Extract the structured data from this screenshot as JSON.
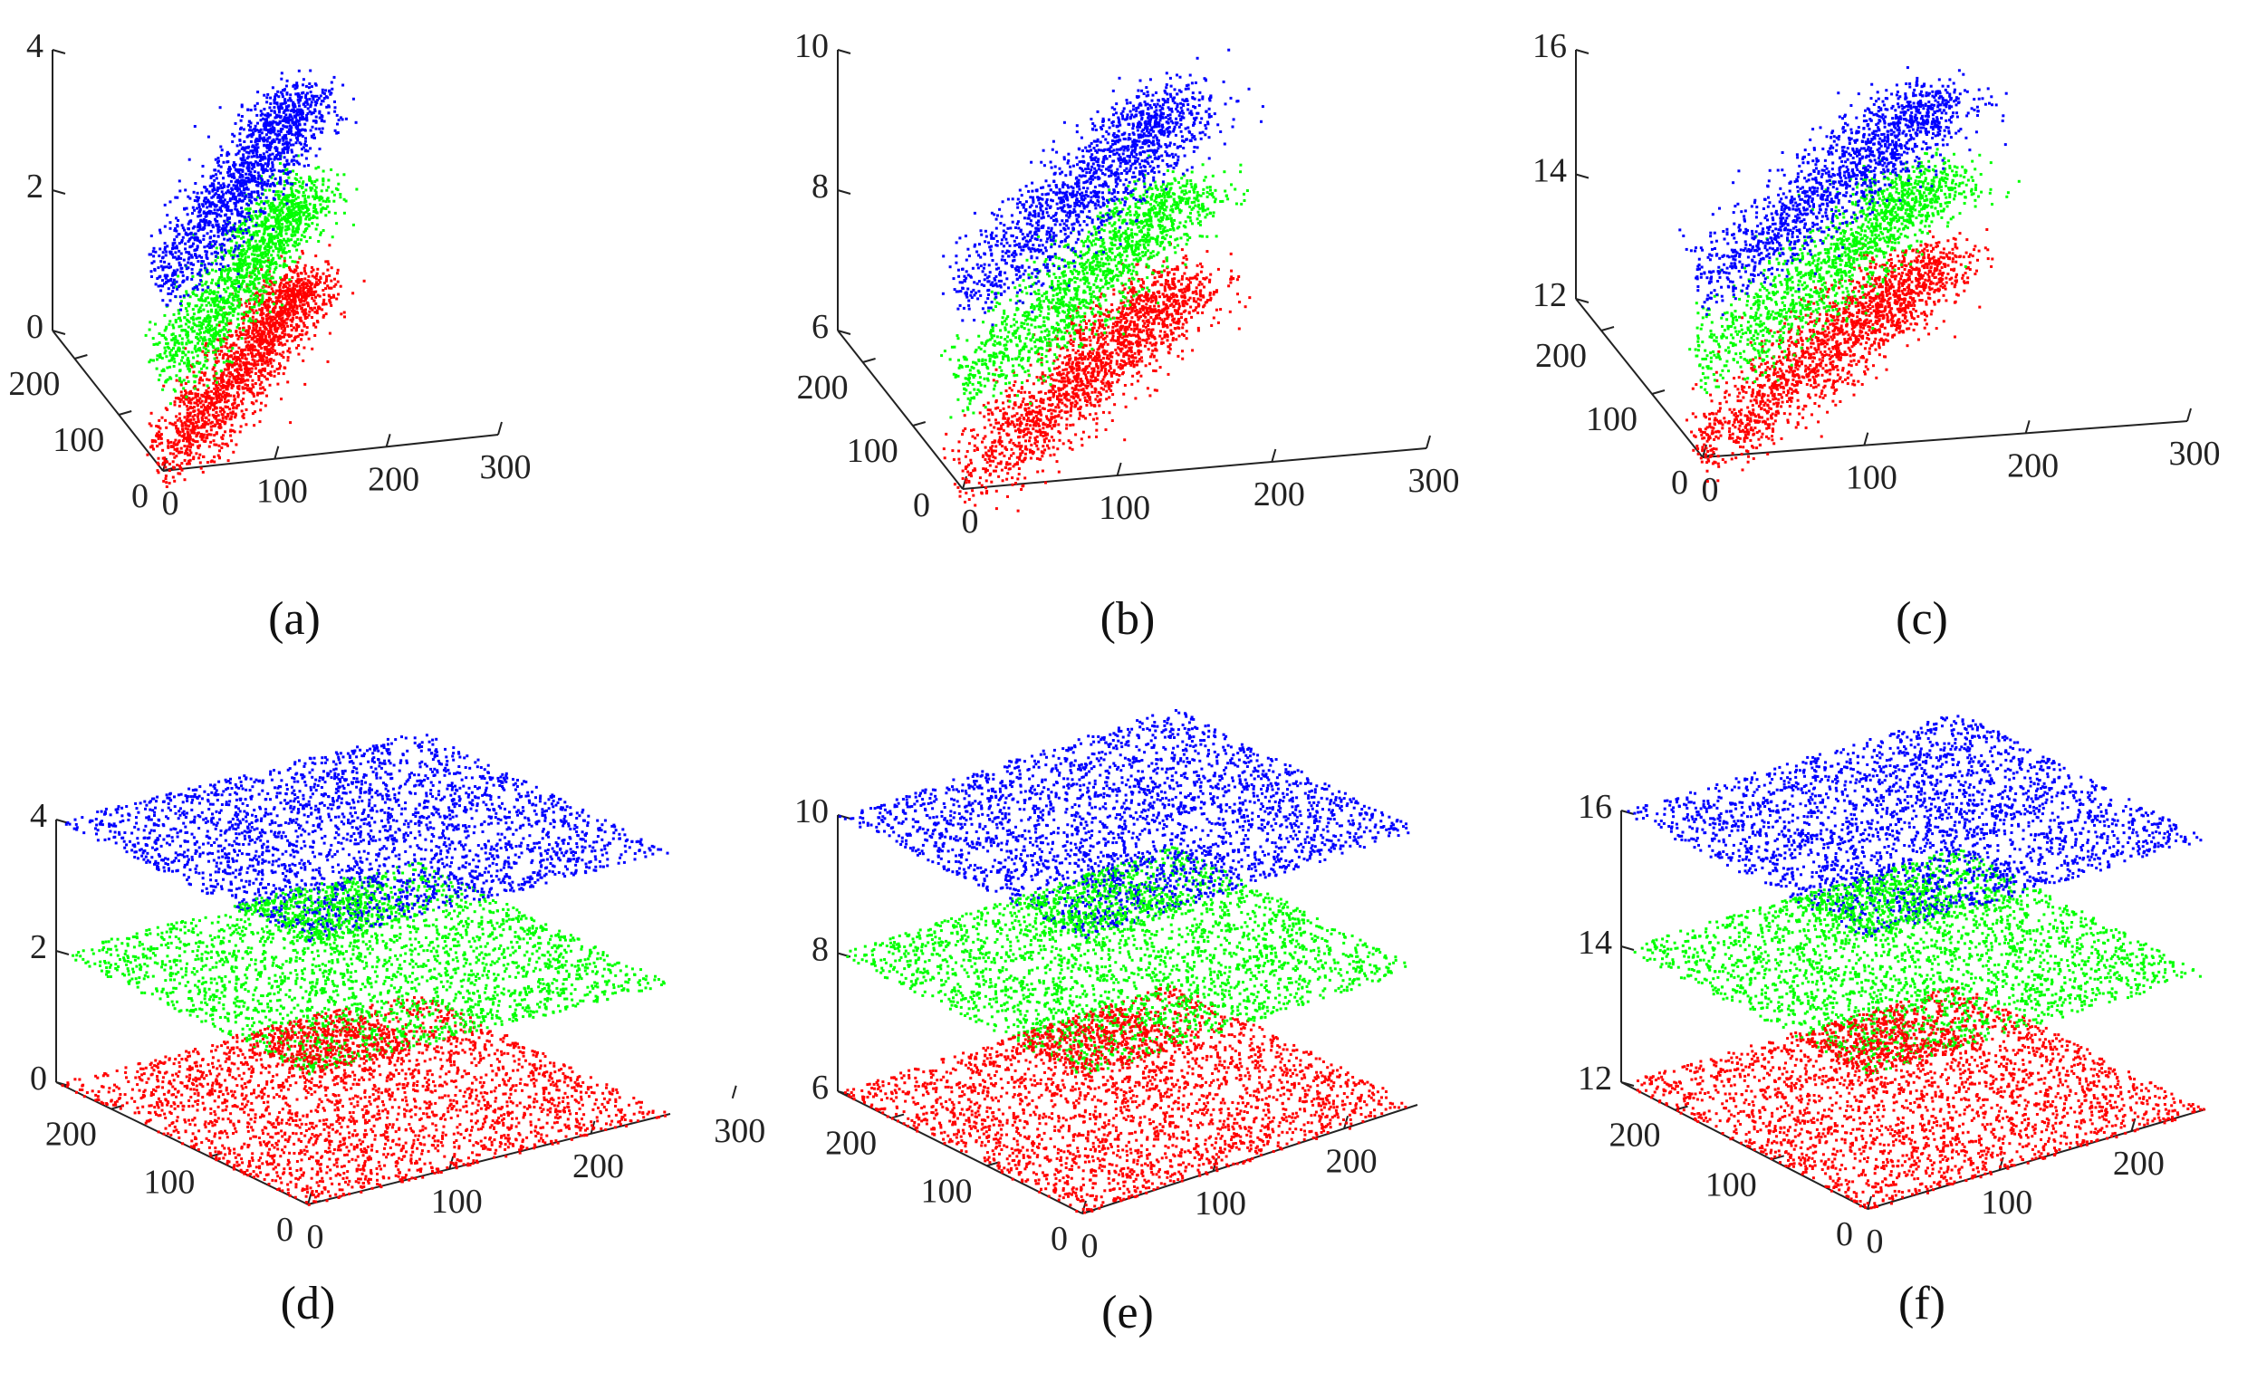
{
  "figure": {
    "colors": {
      "red": "#ff0000",
      "green": "#00ff00",
      "blue": "#0000ff",
      "axis": "#222222"
    },
    "captions": [
      "(a)",
      "(b)",
      "(c)",
      "(d)",
      "(e)",
      "(f)"
    ]
  },
  "chart_data": [
    {
      "id": "a",
      "caption": "(a)",
      "type": "scatter",
      "title": "",
      "xlabel": "",
      "ylabel": "",
      "zlabel": "",
      "xlim": [
        0,
        300
      ],
      "ylim": [
        0,
        250
      ],
      "zlim": [
        0,
        4
      ],
      "xticks": [
        "0",
        "100",
        "200",
        "300"
      ],
      "yticks": [
        "0",
        "100",
        "200"
      ],
      "zticks": [
        "0",
        "2",
        "4"
      ],
      "xtick_values": [
        0,
        100,
        200,
        300
      ],
      "ytick_values": [
        0,
        100,
        200
      ],
      "ztick_values": [
        0,
        2,
        4
      ],
      "grid": false,
      "distribution": "correlated",
      "series": [
        {
          "color": "red",
          "z_level": 0,
          "points": 1800
        },
        {
          "color": "green",
          "z_level": 1.3,
          "points": 1500
        },
        {
          "color": "blue",
          "z_level": 2.6,
          "points": 1500
        }
      ]
    },
    {
      "id": "b",
      "caption": "(b)",
      "type": "scatter",
      "title": "",
      "xlabel": "",
      "ylabel": "",
      "zlabel": "",
      "xlim": [
        0,
        300
      ],
      "ylim": [
        0,
        250
      ],
      "zlim": [
        6,
        10
      ],
      "xticks": [
        "0",
        "100",
        "200",
        "300"
      ],
      "yticks": [
        "100",
        "200"
      ],
      "zticks": [
        "6",
        "8",
        "10"
      ],
      "xtick_values": [
        0,
        100,
        200,
        300
      ],
      "ytick_values": [
        100,
        200
      ],
      "ztick_values": [
        6,
        8,
        10
      ],
      "extra_ticks": [
        {
          "label": "0",
          "position": "origin-left"
        }
      ],
      "grid": false,
      "distribution": "correlated",
      "series": [
        {
          "color": "red",
          "z_level": 6,
          "points": 1800
        },
        {
          "color": "green",
          "z_level": 7.3,
          "points": 1500
        },
        {
          "color": "blue",
          "z_level": 8.6,
          "points": 1500
        }
      ]
    },
    {
      "id": "c",
      "caption": "(c)",
      "type": "scatter",
      "title": "",
      "xlabel": "",
      "ylabel": "",
      "zlabel": "",
      "xlim": [
        0,
        300
      ],
      "ylim": [
        0,
        250
      ],
      "zlim": [
        12,
        16
      ],
      "xticks": [
        "0",
        "100",
        "200",
        "300"
      ],
      "yticks": [
        "0",
        "100",
        "200"
      ],
      "zticks": [
        "12",
        "14",
        "16"
      ],
      "xtick_values": [
        0,
        100,
        200,
        300
      ],
      "ytick_values": [
        0,
        100,
        200
      ],
      "ztick_values": [
        12,
        14,
        16
      ],
      "grid": false,
      "distribution": "correlated",
      "series": [
        {
          "color": "red",
          "z_level": 12,
          "points": 1800
        },
        {
          "color": "green",
          "z_level": 13.3,
          "points": 1500
        },
        {
          "color": "blue",
          "z_level": 14.6,
          "points": 1500
        }
      ]
    },
    {
      "id": "d",
      "caption": "(d)",
      "type": "scatter",
      "title": "",
      "xlabel": "",
      "ylabel": "",
      "zlabel": "",
      "xlim": [
        0,
        256
      ],
      "ylim": [
        0,
        256
      ],
      "zlim": [
        0,
        4
      ],
      "xticks": [
        "0",
        "100",
        "200",
        "300"
      ],
      "yticks": [
        "0",
        "100",
        "200"
      ],
      "zticks": [
        "0",
        "2",
        "4"
      ],
      "xtick_values": [
        0,
        100,
        200,
        300
      ],
      "ytick_values": [
        0,
        100,
        200
      ],
      "ztick_values": [
        0,
        2,
        4
      ],
      "grid": false,
      "distribution": "uniform",
      "series": [
        {
          "color": "red",
          "z_level": 0,
          "points": 2600
        },
        {
          "color": "green",
          "z_level": 2,
          "points": 2600
        },
        {
          "color": "blue",
          "z_level": 4,
          "points": 2600
        }
      ]
    },
    {
      "id": "e",
      "caption": "(e)",
      "type": "scatter",
      "title": "",
      "xlabel": "",
      "ylabel": "",
      "zlabel": "",
      "xlim": [
        0,
        256
      ],
      "ylim": [
        0,
        256
      ],
      "zlim": [
        6,
        10
      ],
      "xticks": [
        "0",
        "100",
        "200"
      ],
      "yticks": [
        "0",
        "100",
        "200"
      ],
      "zticks": [
        "6",
        "8",
        "10"
      ],
      "xtick_values": [
        0,
        100,
        200
      ],
      "ytick_values": [
        0,
        100,
        200
      ],
      "ztick_values": [
        6,
        8,
        10
      ],
      "grid": false,
      "distribution": "uniform",
      "series": [
        {
          "color": "red",
          "z_level": 6,
          "points": 2600
        },
        {
          "color": "green",
          "z_level": 8,
          "points": 2600
        },
        {
          "color": "blue",
          "z_level": 10,
          "points": 2600
        }
      ]
    },
    {
      "id": "f",
      "caption": "(f)",
      "type": "scatter",
      "title": "",
      "xlabel": "",
      "ylabel": "",
      "zlabel": "",
      "xlim": [
        0,
        256
      ],
      "ylim": [
        0,
        256
      ],
      "zlim": [
        12,
        16
      ],
      "xticks": [
        "0",
        "100",
        "200"
      ],
      "yticks": [
        "0",
        "100",
        "200"
      ],
      "zticks": [
        "12",
        "14",
        "16"
      ],
      "xtick_values": [
        0,
        100,
        200
      ],
      "ytick_values": [
        0,
        100,
        200
      ],
      "ztick_values": [
        12,
        14,
        16
      ],
      "grid": false,
      "distribution": "uniform",
      "series": [
        {
          "color": "red",
          "z_level": 12,
          "points": 2600
        },
        {
          "color": "green",
          "z_level": 14,
          "points": 2600
        },
        {
          "color": "blue",
          "z_level": 16,
          "points": 2600
        }
      ]
    }
  ]
}
